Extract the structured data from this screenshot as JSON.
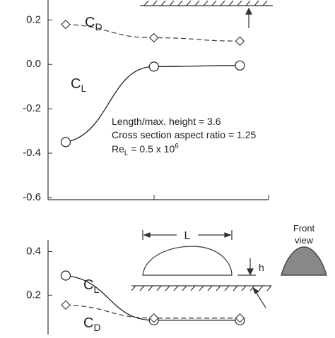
{
  "chart_data": [
    {
      "type": "line",
      "ylim": [
        -0.6,
        0.29
      ],
      "yticks": [
        {
          "value": 0.2,
          "label": "0.2"
        },
        {
          "value": 0.0,
          "label": "0.0"
        },
        {
          "value": -0.2,
          "label": "-0.2"
        },
        {
          "value": -0.4,
          "label": "-0.4"
        },
        {
          "value": -0.6,
          "label": "-0.6"
        }
      ],
      "xlim": [
        0,
        1
      ],
      "x": [
        0.08,
        0.48,
        0.87
      ],
      "series": [
        {
          "name": "C",
          "name_sub": "D",
          "color": "#444444",
          "dash": true,
          "marker": "diamond",
          "values": [
            0.18,
            0.12,
            0.105
          ]
        },
        {
          "name": "C",
          "name_sub": "L",
          "color": "#222222",
          "dash": false,
          "marker": "circle",
          "values": [
            -0.35,
            -0.01,
            -0.005
          ]
        }
      ],
      "annotations": [
        "Length/max. height = 3.6",
        "Cross section aspect ratio = 1.25"
      ],
      "re_label": {
        "text": "Re",
        "sub": "L",
        "rest": " = 0.5 x 10",
        "sup": "6"
      }
    },
    {
      "type": "line",
      "ylim": [
        0.02,
        0.45
      ],
      "yticks": [
        {
          "value": 0.4,
          "label": "0.4"
        },
        {
          "value": 0.2,
          "label": "0.2"
        }
      ],
      "xlim": [
        0,
        1
      ],
      "x": [
        0.08,
        0.48,
        0.87
      ],
      "series": [
        {
          "name": "C",
          "name_sub": "L",
          "color": "#222222",
          "dash": false,
          "marker": "circle",
          "values": [
            0.29,
            0.085,
            0.085
          ]
        },
        {
          "name": "C",
          "name_sub": "D",
          "color": "#444444",
          "dash": true,
          "marker": "diamond",
          "values": [
            0.155,
            0.095,
            0.095
          ]
        }
      ],
      "diagram": {
        "length_label": "L",
        "height_label": "h",
        "front_view": [
          "Front",
          "view"
        ]
      }
    }
  ]
}
